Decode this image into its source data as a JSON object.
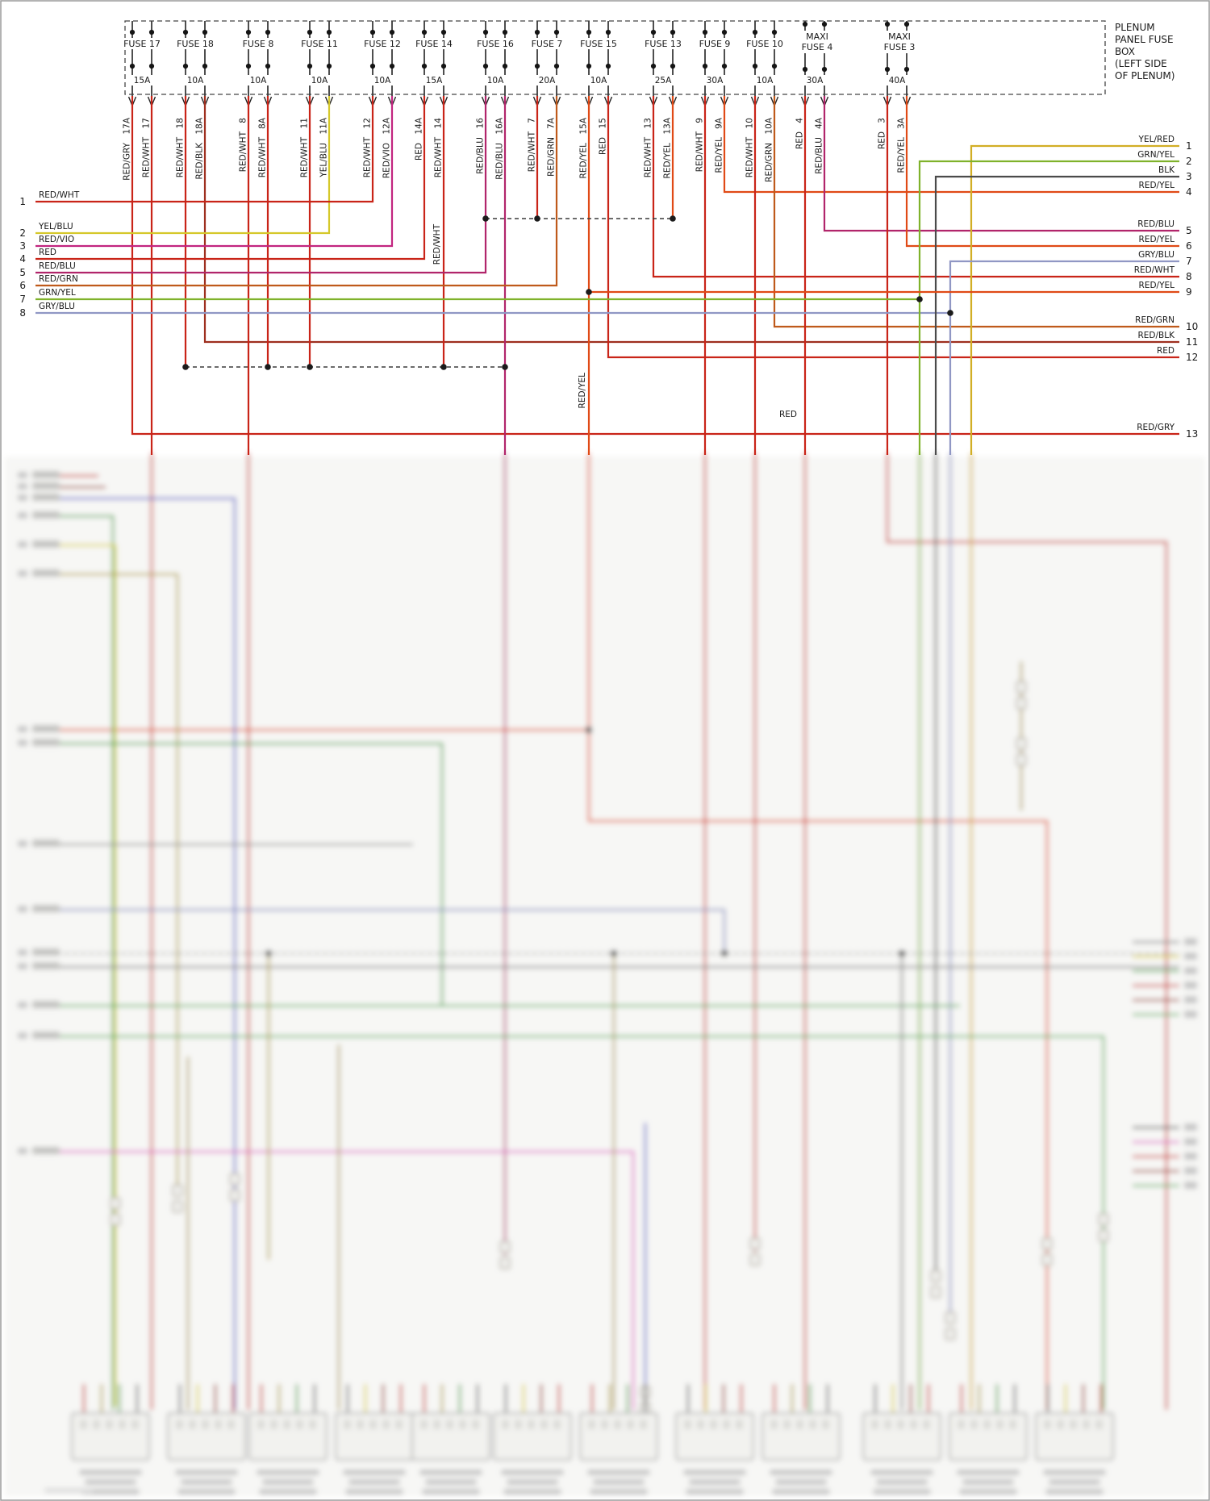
{
  "fuse_box": {
    "label_lines": [
      "PLENUM",
      "PANEL FUSE",
      "BOX",
      "(LEFT SIDE",
      "OF PLENUM)"
    ],
    "fuses": [
      {
        "name": "FUSE 17",
        "amps": "15A",
        "maxi": false,
        "pins": [
          {
            "id": "17A",
            "wire": "RED/GRY"
          },
          {
            "id": "17",
            "wire": "RED/WHT"
          }
        ]
      },
      {
        "name": "FUSE 18",
        "amps": "10A",
        "maxi": false,
        "pins": [
          {
            "id": "18",
            "wire": "RED/WHT"
          },
          {
            "id": "18A",
            "wire": "RED/BLK"
          }
        ]
      },
      {
        "name": "FUSE 8",
        "amps": "10A",
        "maxi": false,
        "pins": [
          {
            "id": "8",
            "wire": "RED/WHT"
          },
          {
            "id": "8A",
            "wire": "RED/WHT"
          }
        ]
      },
      {
        "name": "FUSE 11",
        "amps": "10A",
        "maxi": false,
        "pins": [
          {
            "id": "11",
            "wire": "RED/WHT"
          },
          {
            "id": "11A",
            "wire": "YEL/BLU"
          }
        ]
      },
      {
        "name": "FUSE 12",
        "amps": "10A",
        "maxi": false,
        "pins": [
          {
            "id": "12",
            "wire": "RED/WHT"
          },
          {
            "id": "12A",
            "wire": "RED/VIO"
          }
        ]
      },
      {
        "name": "FUSE 14",
        "amps": "15A",
        "maxi": false,
        "pins": [
          {
            "id": "14A",
            "wire": "RED"
          },
          {
            "id": "14",
            "wire": "RED/WHT"
          }
        ]
      },
      {
        "name": "FUSE 16",
        "amps": "10A",
        "maxi": false,
        "pins": [
          {
            "id": "16",
            "wire": "RED/BLU"
          },
          {
            "id": "16A",
            "wire": "RED/BLU"
          }
        ]
      },
      {
        "name": "FUSE 7",
        "amps": "20A",
        "maxi": false,
        "pins": [
          {
            "id": "7",
            "wire": "RED/WHT"
          },
          {
            "id": "7A",
            "wire": "RED/GRN"
          }
        ]
      },
      {
        "name": "FUSE 15",
        "amps": "10A",
        "maxi": false,
        "pins": [
          {
            "id": "15A",
            "wire": "RED/YEL"
          },
          {
            "id": "15",
            "wire": "RED"
          }
        ]
      },
      {
        "name": "FUSE 13",
        "amps": "25A",
        "maxi": false,
        "pins": [
          {
            "id": "13",
            "wire": "RED/WHT"
          },
          {
            "id": "13A",
            "wire": "RED/YEL"
          }
        ]
      },
      {
        "name": "FUSE 9",
        "amps": "30A",
        "maxi": false,
        "pins": [
          {
            "id": "9",
            "wire": "RED/WHT"
          },
          {
            "id": "9A",
            "wire": "RED/YEL"
          }
        ]
      },
      {
        "name": "FUSE 10",
        "amps": "10A",
        "maxi": false,
        "pins": [
          {
            "id": "10",
            "wire": "RED/WHT"
          },
          {
            "id": "10A",
            "wire": "RED/GRN"
          }
        ]
      },
      {
        "name": "MAXI FUSE 4",
        "amps": "30A",
        "maxi": true,
        "pins": [
          {
            "id": "4",
            "wire": "RED"
          },
          {
            "id": "4A",
            "wire": "RED/BLU"
          }
        ]
      },
      {
        "name": "MAXI FUSE 3",
        "amps": "40A",
        "maxi": true,
        "pins": [
          {
            "id": "3",
            "wire": "RED"
          },
          {
            "id": "3A",
            "wire": "RED/YEL"
          }
        ]
      }
    ]
  },
  "left_connector": {
    "pins": [
      {
        "num": "1",
        "wire": "RED/WHT"
      },
      {
        "num": "2",
        "wire": "YEL/BLU"
      },
      {
        "num": "3",
        "wire": "RED/VIO"
      },
      {
        "num": "4",
        "wire": "RED"
      },
      {
        "num": "5",
        "wire": "RED/BLU"
      },
      {
        "num": "6",
        "wire": "RED/GRN"
      },
      {
        "num": "7",
        "wire": "GRN/YEL"
      },
      {
        "num": "8",
        "wire": "GRY/BLU"
      }
    ]
  },
  "right_connector": {
    "pins": [
      {
        "num": "1",
        "wire": "YEL/RED"
      },
      {
        "num": "2",
        "wire": "GRN/YEL"
      },
      {
        "num": "3",
        "wire": "BLK"
      },
      {
        "num": "4",
        "wire": "RED/YEL"
      },
      {
        "num": "5",
        "wire": "RED/BLU"
      },
      {
        "num": "6",
        "wire": "RED/YEL"
      },
      {
        "num": "7",
        "wire": "GRY/BLU"
      },
      {
        "num": "8",
        "wire": "RED/WHT"
      },
      {
        "num": "9",
        "wire": "RED/YEL"
      },
      {
        "num": "10",
        "wire": "RED/GRN"
      },
      {
        "num": "11",
        "wire": "RED/BLK"
      },
      {
        "num": "12",
        "wire": "RED"
      },
      {
        "num": "13",
        "wire": "RED/GRY"
      }
    ]
  },
  "inline_labels": [
    "RED/WHT",
    "RED/YEL",
    "RED"
  ],
  "wire_colors": {
    "RED": "#c92418",
    "RED/WHT": "#c92418",
    "RED/GRY": "#c92418",
    "RED/BLK": "#9e2f1f",
    "RED/YEL": "#e04a16",
    "RED/BLU": "#b1256b",
    "RED/VIO": "#c22580",
    "RED/GRN": "#bf5a1b",
    "YEL/BLU": "#d5c82a",
    "GRN/YEL": "#7fb22b",
    "YEL/RED": "#d2ae25",
    "BLK": "#4b4b4b",
    "GRY/BLU": "#9097c4"
  }
}
